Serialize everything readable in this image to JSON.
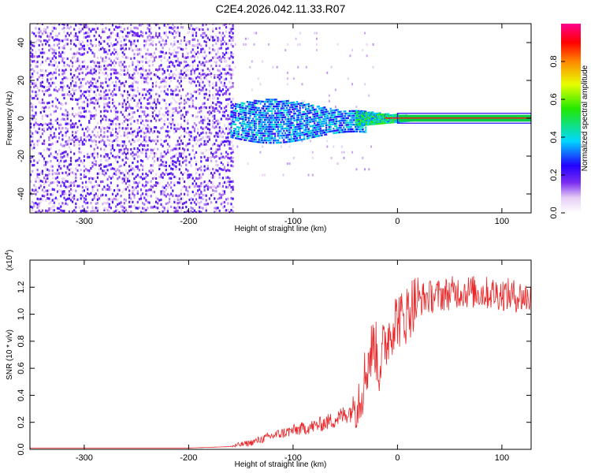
{
  "page": {
    "title": "C2E4.2026.042.11.33.R07"
  },
  "chart_data": [
    {
      "type": "heatmap",
      "name": "spectrogram",
      "title": "C2E4.2026.042.11.33.R07",
      "xlabel": "Height of straight line (km)",
      "ylabel": "Frequency (Hz)",
      "xlim": [
        -352,
        128
      ],
      "ylim": [
        -50,
        50
      ],
      "xticks": [
        -300,
        -200,
        -100,
        0,
        100
      ],
      "yticks": [
        -40,
        -20,
        0,
        20,
        40
      ],
      "regions": [
        {
          "name": "noise",
          "x_range": [
            -352,
            -158
          ],
          "freq_range": [
            -50,
            50
          ],
          "amplitude": "0.05-0.2"
        },
        {
          "name": "broadening",
          "x_range": [
            -160,
            -30
          ],
          "freq_range": [
            -12,
            10
          ],
          "amplitude": "0.2-0.45"
        },
        {
          "name": "narrowing",
          "x_range": [
            -40,
            15
          ],
          "freq_range": [
            -4,
            4
          ],
          "amplitude": "0.3-0.6"
        },
        {
          "name": "carrier-line",
          "x_range": [
            0,
            128
          ],
          "freq": 0,
          "amplitude": 1.0
        }
      ],
      "colorbar": {
        "label": "Normalized spectral amplitude",
        "ticks": [
          "0.0",
          "0.2",
          "0.4",
          "0.6",
          "0.8"
        ],
        "range": [
          0,
          1
        ]
      }
    },
    {
      "type": "line",
      "name": "snr",
      "xlabel": "Height of straight line (km)",
      "ylabel": "SNR (10 * v/v)",
      "scale_label": "(x10",
      "scale_exp": "4",
      "xlim": [
        -352,
        128
      ],
      "ylim": [
        0,
        1.4
      ],
      "xticks": [
        -300,
        -200,
        -100,
        0,
        100
      ],
      "yticks": [
        "0.0",
        "0.2",
        "0.4",
        "0.6",
        "0.8",
        "1.0",
        "1.2"
      ],
      "color": "#e8282a",
      "series": [
        {
          "name": "SNR",
          "x": [
            -352,
            -300,
            -250,
            -200,
            -160,
            -140,
            -120,
            -100,
            -80,
            -60,
            -45,
            -35,
            -28,
            -22,
            -18,
            -12,
            -5,
            0,
            5,
            10,
            15,
            25,
            40,
            60,
            80,
            100,
            128
          ],
          "y": [
            0.01,
            0.01,
            0.01,
            0.01,
            0.02,
            0.05,
            0.1,
            0.14,
            0.17,
            0.22,
            0.28,
            0.42,
            0.65,
            0.8,
            0.6,
            0.78,
            0.92,
            0.98,
            0.95,
            1.02,
            1.08,
            1.12,
            1.14,
            1.17,
            1.16,
            1.15,
            1.12
          ]
        }
      ]
    }
  ]
}
